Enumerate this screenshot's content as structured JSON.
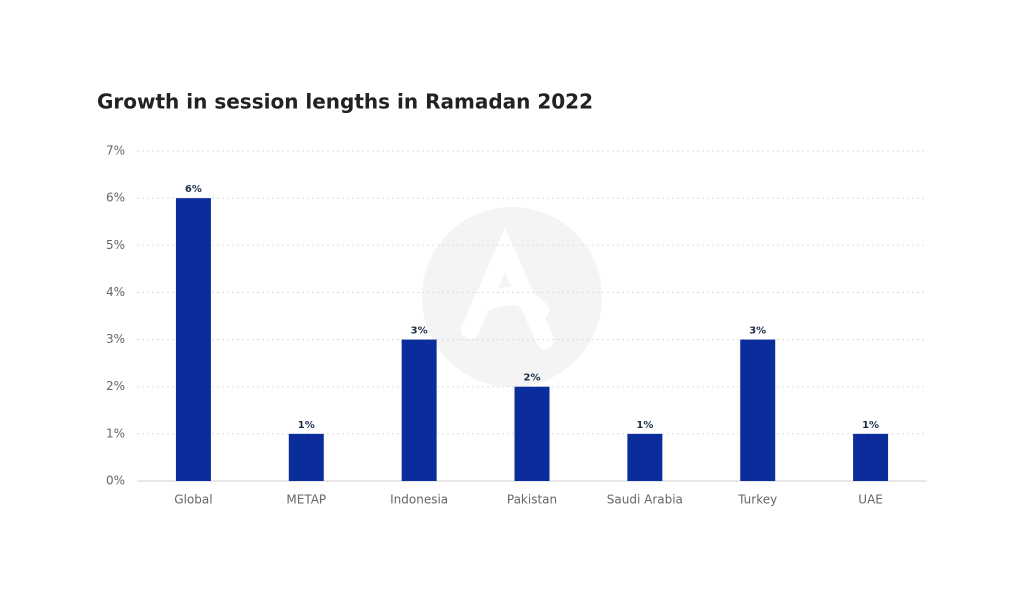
{
  "chart_data": {
    "type": "bar",
    "title": "Growth in session lengths in Ramadan 2022",
    "categories": [
      "Global",
      "METAP",
      "Indonesia",
      "Pakistan",
      "Saudi Arabia",
      "Turkey",
      "UAE"
    ],
    "values": [
      6,
      1,
      3,
      2,
      1,
      3,
      1
    ],
    "value_labels": [
      "6%",
      "1%",
      "3%",
      "2%",
      "1%",
      "3%",
      "1%"
    ],
    "color": "#0b2d9c",
    "ylim": [
      0,
      7
    ],
    "yticks": [
      {
        "value": 0,
        "label": "0%"
      },
      {
        "value": 1,
        "label": "1%"
      },
      {
        "value": 2,
        "label": "2%"
      },
      {
        "value": 3,
        "label": "3%"
      },
      {
        "value": 4,
        "label": "4%"
      },
      {
        "value": 5,
        "label": "5%"
      },
      {
        "value": 6,
        "label": "6%"
      },
      {
        "value": 7,
        "label": "7%"
      }
    ],
    "grid": true
  }
}
